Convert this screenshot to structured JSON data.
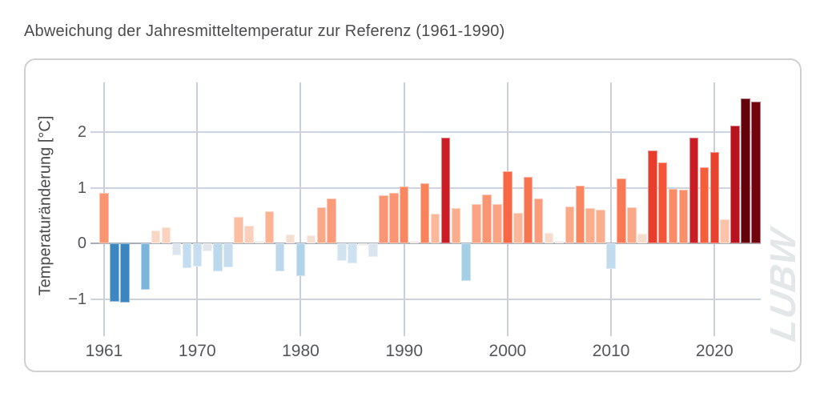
{
  "title": "Abweichung der Jahresmitteltemperatur zur Referenz (1961-1990)",
  "watermark": "LUBW",
  "colors": {
    "title_text": "#4b4b4d",
    "tick_text": "#55565a",
    "card_border": "#d0d0d0",
    "grid_line": "#c9cfda",
    "zero_line": "#a8aebc",
    "watermark_text": "#e3e7e7"
  },
  "chart_data": {
    "type": "bar",
    "title": "Abweichung der Jahresmitteltemperatur zur Referenz (1961-1990)",
    "xlabel": "",
    "ylabel": "Temperaturänderung [°C]",
    "reference_period": "1961-1990",
    "grid": true,
    "legend": false,
    "x_ticks": [
      "1961",
      "1970",
      "1980",
      "1990",
      "2000",
      "2010",
      "2020"
    ],
    "y_ticks": [
      {
        "label": "2",
        "value": 2
      },
      {
        "label": "1",
        "value": 1
      },
      {
        "label": "0",
        "value": 0
      },
      {
        "label": "−1",
        "value": -1
      }
    ],
    "xlim": [
      1959.7,
      2024.5
    ],
    "ylim": [
      -1.65,
      2.89
    ],
    "series": [
      {
        "name": "Abweichung der Jahresmitteltemperatur zur Referenz (1961-1990)",
        "x": [
          1961,
          1962,
          1963,
          1964,
          1965,
          1966,
          1967,
          1968,
          1969,
          1970,
          1971,
          1972,
          1973,
          1974,
          1975,
          1976,
          1977,
          1978,
          1979,
          1980,
          1981,
          1982,
          1983,
          1984,
          1985,
          1986,
          1987,
          1988,
          1989,
          1990,
          1991,
          1992,
          1993,
          1994,
          1995,
          1996,
          1997,
          1998,
          1999,
          2000,
          2001,
          2002,
          2003,
          2004,
          2005,
          2006,
          2007,
          2008,
          2009,
          2010,
          2011,
          2012,
          2013,
          2014,
          2015,
          2016,
          2017,
          2018,
          2019,
          2020,
          2021,
          2022,
          2023,
          2024
        ],
        "values": [
          0.9,
          -1.05,
          -1.07,
          null,
          -0.83,
          0.23,
          0.29,
          -0.22,
          -0.45,
          -0.42,
          -0.15,
          -0.5,
          -0.43,
          0.48,
          0.31,
          0.05,
          0.57,
          -0.51,
          0.16,
          -0.59,
          0.14,
          0.65,
          0.8,
          -0.31,
          -0.36,
          -0.05,
          -0.24,
          0.87,
          0.9,
          1.02,
          0.05,
          1.08,
          0.53,
          1.9,
          0.63,
          -0.67,
          0.71,
          0.88,
          0.71,
          1.3,
          0.54,
          1.2,
          0.8,
          0.19,
          0.05,
          0.66,
          1.04,
          0.63,
          0.61,
          -0.46,
          1.16,
          0.65,
          0.17,
          1.67,
          1.45,
          0.98,
          0.96,
          1.9,
          1.37,
          1.64,
          0.43,
          2.12,
          2.61,
          2.54
        ]
      }
    ],
    "color_stops": [
      [
        -1.2,
        "#2F7CB8"
      ],
      [
        -1.05,
        "#3D87C0"
      ],
      [
        -0.83,
        "#7CB5DB"
      ],
      [
        -0.67,
        "#A5CFE4"
      ],
      [
        -0.5,
        "#BBD8EC"
      ],
      [
        -0.42,
        "#C7DEF0"
      ],
      [
        -0.3,
        "#D3E3F0"
      ],
      [
        -0.2,
        "#DEE5EC"
      ],
      [
        -0.1,
        "#E7E8EA"
      ],
      [
        0.0,
        "#ECEAE8"
      ],
      [
        0.1,
        "#F3E3DA"
      ],
      [
        0.2,
        "#F7D9C8"
      ],
      [
        0.3,
        "#FAD1BD"
      ],
      [
        0.45,
        "#FBC2A7"
      ],
      [
        0.55,
        "#FBB697"
      ],
      [
        0.65,
        "#FAA988"
      ],
      [
        0.75,
        "#FAA080"
      ],
      [
        0.85,
        "#FA9876"
      ],
      [
        0.95,
        "#F98F6B"
      ],
      [
        1.05,
        "#F9855E"
      ],
      [
        1.2,
        "#F77450"
      ],
      [
        1.35,
        "#F5603C"
      ],
      [
        1.5,
        "#F05034"
      ],
      [
        1.7,
        "#E43A2A"
      ],
      [
        1.9,
        "#CC1C24"
      ],
      [
        2.15,
        "#B5121E"
      ],
      [
        2.35,
        "#930914"
      ],
      [
        2.55,
        "#70040F"
      ],
      [
        2.65,
        "#5A0009"
      ]
    ]
  }
}
